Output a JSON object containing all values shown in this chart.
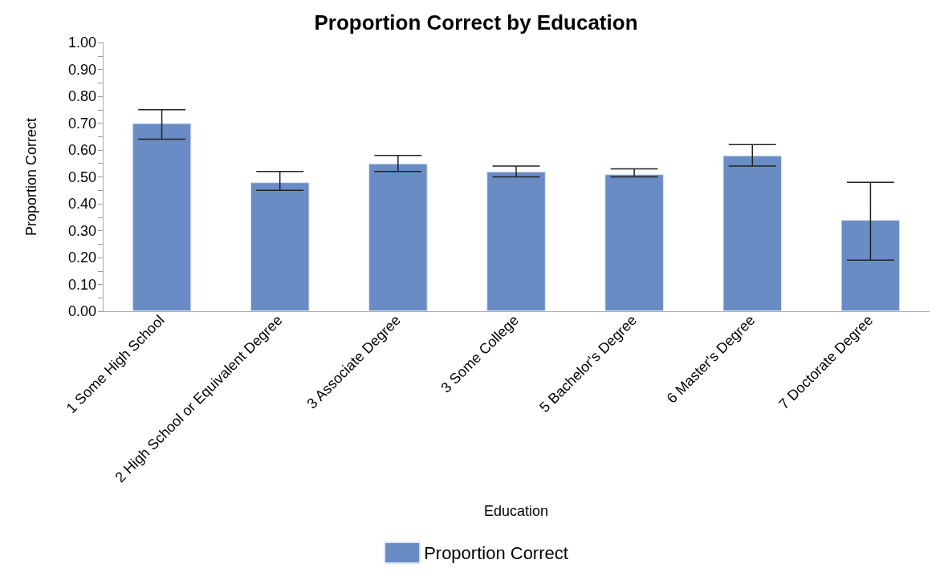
{
  "chart_data": {
    "type": "bar",
    "title": "Proportion Correct by Education",
    "xlabel": "Education",
    "ylabel": "Proportion Correct",
    "categories": [
      "1 Some High School",
      "2 High School or Equivalent Degree",
      "3 Associate Degree",
      "3 Some College",
      "5 Bachelor's Degree",
      "6 Master's Degree",
      "7 Doctorate Degree"
    ],
    "series": [
      {
        "name": "Proportion Correct",
        "color": "#6a8cc5",
        "values": [
          0.7,
          0.48,
          0.55,
          0.52,
          0.51,
          0.58,
          0.34
        ],
        "errors": [
          [
            0.64,
            0.75
          ],
          [
            0.45,
            0.52
          ],
          [
            0.52,
            0.58
          ],
          [
            0.5,
            0.54
          ],
          [
            0.5,
            0.53
          ],
          [
            0.54,
            0.62
          ],
          [
            0.19,
            0.48
          ]
        ]
      }
    ],
    "ylim": [
      0,
      1
    ],
    "yticks": [
      {
        "value": 0,
        "label": "0.00"
      },
      {
        "value": 0.05,
        "label": null
      },
      {
        "value": 0.1,
        "label": "0.10"
      },
      {
        "value": 0.15,
        "label": null
      },
      {
        "value": 0.2,
        "label": "0.20"
      },
      {
        "value": 0.25,
        "label": null
      },
      {
        "value": 0.3,
        "label": "0.30"
      },
      {
        "value": 0.35,
        "label": null
      },
      {
        "value": 0.4,
        "label": "0.40"
      },
      {
        "value": 0.45,
        "label": null
      },
      {
        "value": 0.5,
        "label": "0.50"
      },
      {
        "value": 0.55,
        "label": null
      },
      {
        "value": 0.6,
        "label": "0.60"
      },
      {
        "value": 0.65,
        "label": null
      },
      {
        "value": 0.7,
        "label": "0.70"
      },
      {
        "value": 0.75,
        "label": null
      },
      {
        "value": 0.8,
        "label": "0.80"
      },
      {
        "value": 0.85,
        "label": null
      },
      {
        "value": 0.9,
        "label": "0.90"
      },
      {
        "value": 0.95,
        "label": null
      },
      {
        "value": 1,
        "label": "1.00"
      }
    ],
    "grid": false,
    "legend": "bottom"
  }
}
